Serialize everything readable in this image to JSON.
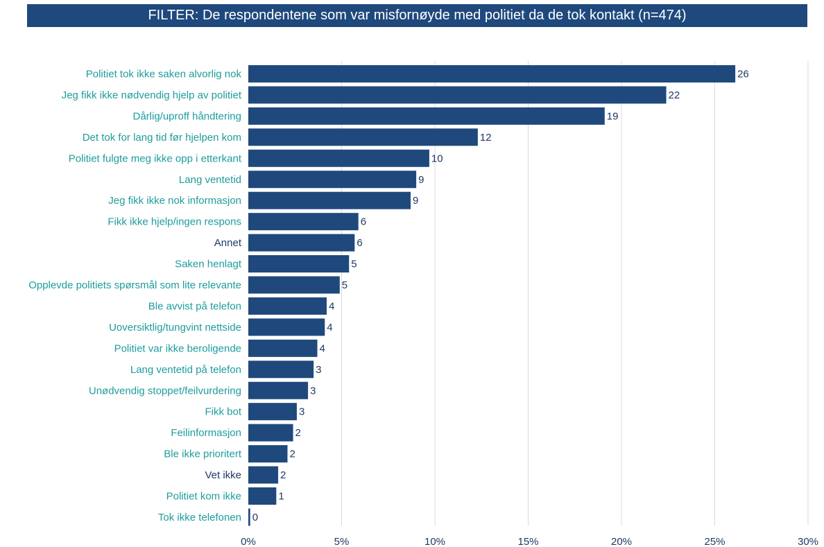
{
  "header": {
    "title": "FILTER: De respondentene som var misfornøyde med politiet da de tok kontakt (n=474)"
  },
  "colors": {
    "bar": "#1f497d",
    "label": "#1e9c9c",
    "label_neutral": "#1f3864",
    "value": "#1f3864",
    "grid": "#d9d9d9"
  },
  "chart_data": {
    "type": "bar",
    "orientation": "horizontal",
    "title": "",
    "xlabel": "",
    "ylabel": "",
    "xlim": [
      0,
      30
    ],
    "grid": true,
    "legend": "none",
    "x_ticks": [
      {
        "value": 0,
        "label": "0%"
      },
      {
        "value": 5,
        "label": "5%"
      },
      {
        "value": 10,
        "label": "10%"
      },
      {
        "value": 15,
        "label": "15%"
      },
      {
        "value": 20,
        "label": "20%"
      },
      {
        "value": 25,
        "label": "25%"
      },
      {
        "value": 30,
        "label": "30%"
      }
    ],
    "categories": [
      "Politiet tok ikke saken alvorlig nok",
      "Jeg fikk ikke nødvendig hjelp av politiet",
      "Dårlig/uproff håndtering",
      "Det tok for lang tid før hjelpen kom",
      "Politiet fulgte meg ikke opp i etterkant",
      "Lang ventetid",
      "Jeg fikk ikke nok informasjon",
      "Fikk ikke hjelp/ingen respons",
      "Annet",
      "Saken henlagt",
      "Opplevde politiets spørsmål som lite relevante",
      "Ble avvist på telefon",
      "Uoversiktlig/tungvint nettside",
      "Politiet var ikke beroligende",
      "Lang ventetid på telefon",
      "Unødvendig stoppet/feilvurdering",
      "Fikk bot",
      "Feilinformasjon",
      "Ble ikke prioritert",
      "Vet ikke",
      "Politiet kom ikke",
      "Tok ikke telefonen"
    ],
    "neutral_categories": [
      "Annet",
      "Vet ikke"
    ],
    "values": [
      26.1,
      22.4,
      19.1,
      12.3,
      9.7,
      9.0,
      8.7,
      5.9,
      5.7,
      5.4,
      4.9,
      4.2,
      4.1,
      3.7,
      3.5,
      3.2,
      2.6,
      2.4,
      2.1,
      1.6,
      1.5,
      0.1
    ],
    "value_labels": [
      "26",
      "22",
      "19",
      "12",
      "10",
      "9",
      "9",
      "6",
      "6",
      "5",
      "5",
      "4",
      "4",
      "4",
      "3",
      "3",
      "3",
      "2",
      "2",
      "2",
      "1",
      "0"
    ]
  }
}
